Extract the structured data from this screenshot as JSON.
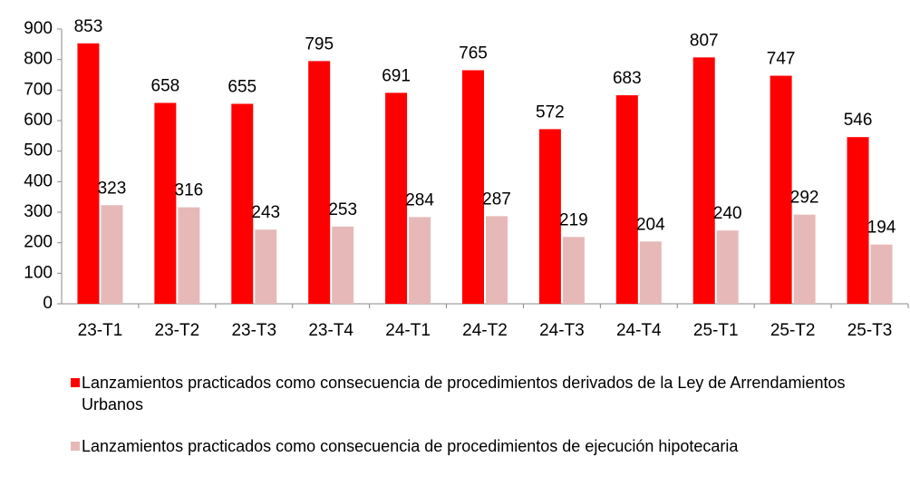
{
  "chart_data": {
    "type": "bar",
    "categories": [
      "23-T1",
      "23-T2",
      "23-T3",
      "23-T4",
      "24-T1",
      "24-T2",
      "24-T3",
      "24-T4",
      "25-T1",
      "25-T2",
      "25-T3"
    ],
    "series": [
      {
        "name": "Lanzamientos practicados como consecuencia de procedimientos derivados de la Ley de Arrendamientos Urbanos",
        "color": "#ff0000",
        "values": [
          853,
          658,
          655,
          795,
          691,
          765,
          572,
          683,
          807,
          747,
          546
        ]
      },
      {
        "name": "Lanzamientos practicados como consecuencia de procedimientos de ejecución hipotecaria",
        "color": "#e6b9b8",
        "values": [
          323,
          316,
          243,
          253,
          284,
          287,
          219,
          204,
          240,
          292,
          194
        ]
      }
    ],
    "ylim": [
      0,
      900
    ],
    "yticks": [
      0,
      100,
      200,
      300,
      400,
      500,
      600,
      700,
      800,
      900
    ],
    "grid": false,
    "legend": "bottom"
  }
}
